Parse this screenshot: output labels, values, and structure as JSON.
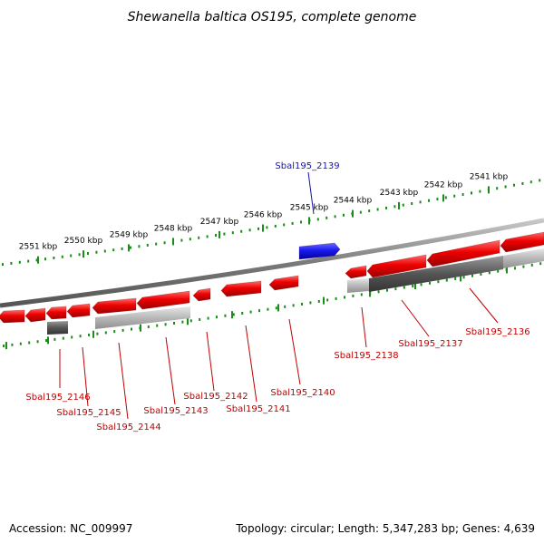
{
  "title": "Shewanella baltica OS195, complete genome",
  "footer": {
    "accession_label": "Accession: NC_009997",
    "topology_label": "Topology: circular; Length: 5,347,283 bp; Genes: 4,639"
  },
  "colors": {
    "forward_gene": "#ee0000",
    "reverse_gene": "#2222ee",
    "forward_label": "#c00000",
    "reverse_label": "#1515b0",
    "genome_line": "#8a8a8a",
    "tick": "#1a8c1a"
  },
  "scale": {
    "unit": "kbp",
    "ticks": [
      "2551 kbp",
      "2550 kbp",
      "2549 kbp",
      "2548 kbp",
      "2547 kbp",
      "2546 kbp",
      "2545 kbp",
      "2544 kbp",
      "2543 kbp",
      "2542 kbp",
      "2541 kbp"
    ]
  },
  "genes": [
    {
      "label": "Sbal195_2139",
      "strand": "reverse"
    },
    {
      "label": "Sbal195_2146",
      "strand": "forward"
    },
    {
      "label": "Sbal195_2145",
      "strand": "forward"
    },
    {
      "label": "Sbal195_2144",
      "strand": "forward"
    },
    {
      "label": "Sbal195_2143",
      "strand": "forward"
    },
    {
      "label": "Sbal195_2142",
      "strand": "forward"
    },
    {
      "label": "Sbal195_2141",
      "strand": "forward"
    },
    {
      "label": "Sbal195_2140",
      "strand": "forward"
    },
    {
      "label": "Sbal195_2138",
      "strand": "forward"
    },
    {
      "label": "Sbal195_2137",
      "strand": "forward"
    },
    {
      "label": "Sbal195_2136",
      "strand": "forward"
    }
  ]
}
